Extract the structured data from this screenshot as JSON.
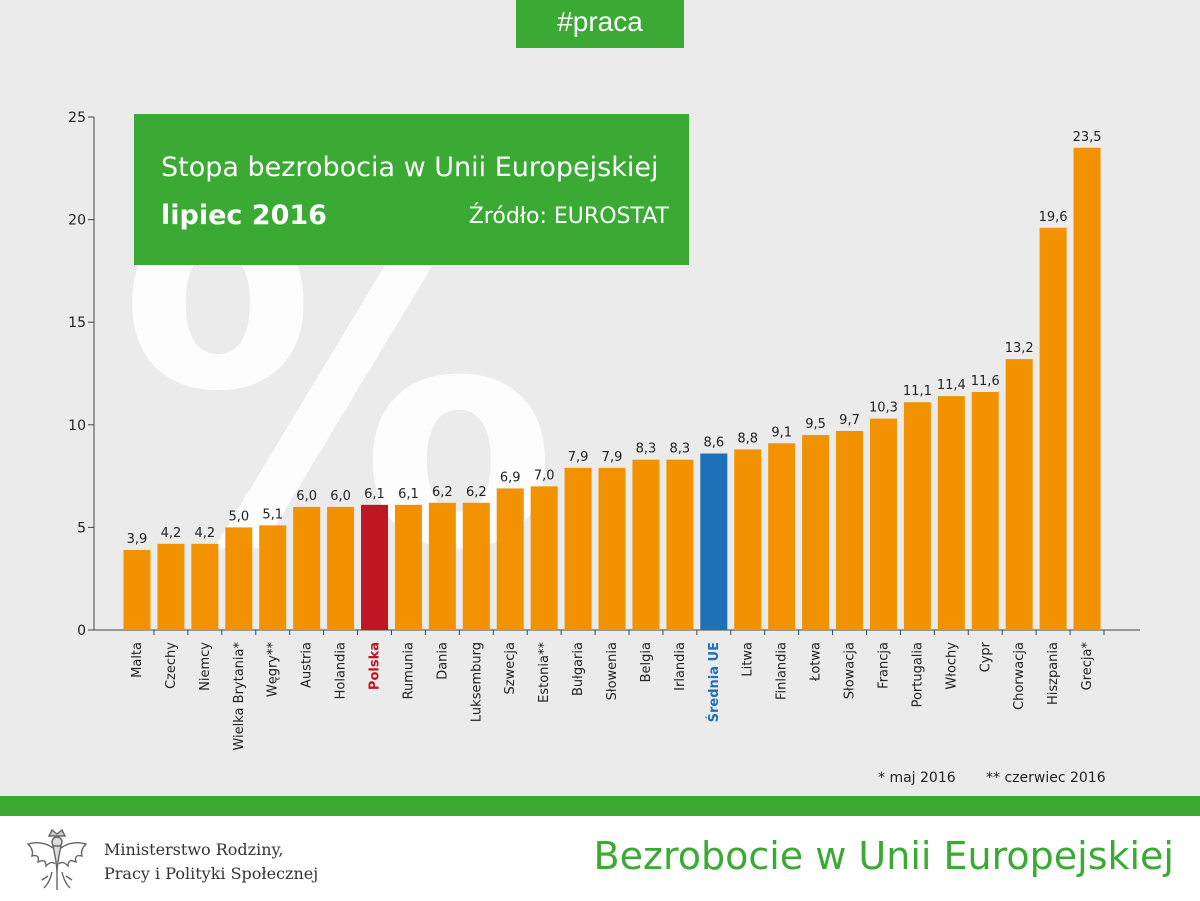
{
  "header": {
    "hashtag": "#praca"
  },
  "colors": {
    "bar": "#f39200",
    "highlight_poland": "#be1622",
    "highlight_eu": "#1d71b8",
    "green": "#3aaa35",
    "background": "#ebebeb"
  },
  "watermark": "%",
  "chart_data": {
    "type": "bar",
    "title": "Stopa bezrobocia w Unii Europejskiej",
    "subtitle": "lipiec 2016",
    "source": "Źródło: EUROSTAT",
    "ylim": [
      0,
      25
    ],
    "yticks": [
      0,
      5,
      10,
      15,
      20,
      25
    ],
    "categories": [
      "Malta",
      "Czechy",
      "Niemcy",
      "Wielka Brytania*",
      "Węgry**",
      "Austria",
      "Holandia",
      "Polska",
      "Rumunia",
      "Dania",
      "Luksemburg",
      "Szwecja",
      "Estonia**",
      "Bułgaria",
      "Słowenia",
      "Belgia",
      "Irlandia",
      "Średnia UE",
      "Litwa",
      "Finlandia",
      "Łotwa",
      "Słowacja",
      "Francja",
      "Portugalia",
      "Włochy",
      "Cypr",
      "Chorwacja",
      "Hiszpania",
      "Grecja*"
    ],
    "values": [
      3.9,
      4.2,
      4.2,
      5.0,
      5.1,
      6.0,
      6.0,
      6.1,
      6.1,
      6.2,
      6.2,
      6.9,
      7.0,
      7.9,
      7.9,
      8.3,
      8.3,
      8.6,
      8.8,
      9.1,
      9.5,
      9.7,
      10.3,
      11.1,
      11.4,
      11.6,
      13.2,
      19.6,
      23.5
    ],
    "value_labels": [
      "3,9",
      "4,2",
      "4,2",
      "5,0",
      "5,1",
      "6,0",
      "6,0",
      "6,1",
      "6,1",
      "6,2",
      "6,2",
      "6,9",
      "7,0",
      "7,9",
      "7,9",
      "8,3",
      "8,3",
      "8,6",
      "8,8",
      "9,1",
      "9,5",
      "9,7",
      "10,3",
      "11,1",
      "11,4",
      "11,6",
      "13,2",
      "19,6",
      "23,5"
    ],
    "highlights": {
      "Polska": "highlight_poland",
      "Średnia UE": "highlight_eu"
    },
    "grid": false,
    "legend": "none"
  },
  "footnotes": {
    "note1": "* maj 2016",
    "note2": "** czerwiec 2016"
  },
  "footer": {
    "ministry_line1": "Ministerstwo Rodziny,",
    "ministry_line2": "Pracy i Polityki Społecznej",
    "title": "Bezrobocie w Unii Europejskiej",
    "logo_icon": "eagle-emblem-icon"
  }
}
